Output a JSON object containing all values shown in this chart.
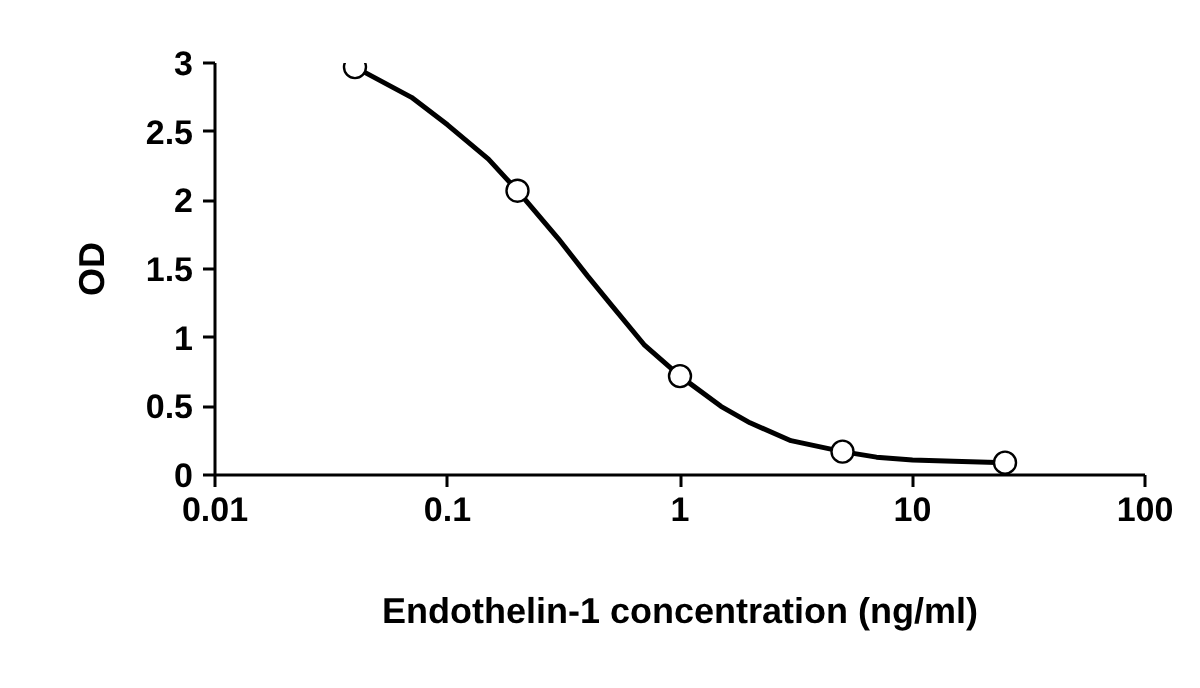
{
  "chart_data": {
    "type": "scatter",
    "xlabel": "Endothelin-1 concentration (ng/ml)",
    "ylabel": "OD",
    "log": "x",
    "xlim": [
      0.01,
      100
    ],
    "xticks": [
      0.01,
      0.1,
      1,
      10,
      100
    ],
    "ylim": [
      0,
      3
    ],
    "yticks": [
      0,
      0.5,
      1,
      1.5,
      2,
      2.5,
      3
    ],
    "grid": false,
    "series": [
      {
        "type": "line",
        "color": "#000000",
        "marker": "none",
        "line_style": "solid",
        "x": [
          0.04,
          0.07,
          0.1,
          0.15,
          0.2,
          0.3,
          0.4,
          0.5,
          0.7,
          1,
          1.5,
          2,
          3,
          5,
          7,
          10,
          15,
          25
        ],
        "values": [
          2.97,
          2.75,
          2.55,
          2.3,
          2.07,
          1.72,
          1.45,
          1.25,
          0.95,
          0.72,
          0.5,
          0.38,
          0.25,
          0.17,
          0.13,
          0.11,
          0.1,
          0.09
        ]
      },
      {
        "color": "#000000",
        "marker": "circle",
        "x": [
          0.04,
          0.2,
          1,
          5,
          25
        ],
        "values": [
          2.97,
          2.07,
          0.72,
          0.17,
          0.09
        ]
      }
    ]
  }
}
